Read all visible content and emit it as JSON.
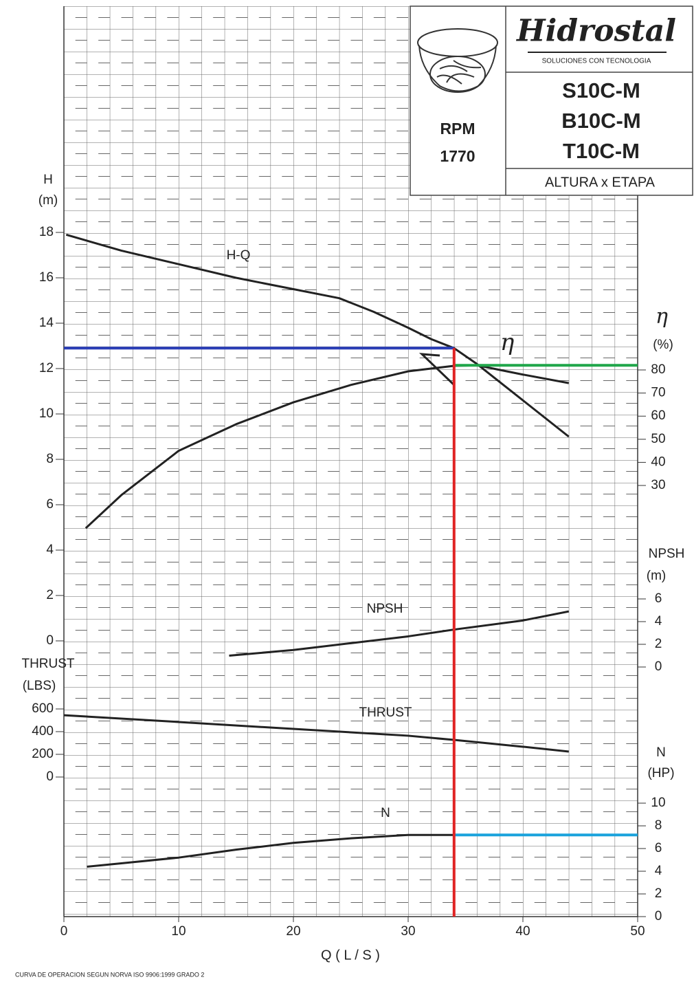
{
  "header": {
    "rpm_label": "RPM",
    "rpm": "1770",
    "brand": "Hidrostal",
    "tagline": "SOLUCIONES CON TECNOLOGIA",
    "models": [
      "S10C-M",
      "B10C-M",
      "T10C-M"
    ],
    "subtitle": "ALTURA x ETAPA"
  },
  "footer": "CURVA DE OPERACION SEGUN NORVA ISO 9906:1999 GRADO 2",
  "chart_data": {
    "type": "line",
    "xlabel": "Q ( L / S )",
    "xlim": [
      0,
      50
    ],
    "xticks": [
      0,
      10,
      20,
      30,
      40,
      50
    ],
    "grid": true,
    "operating_point": {
      "q": {
        "value": 34,
        "color": "#e02424"
      },
      "h": {
        "value": 12.9,
        "color": "#2b3fb8"
      },
      "efficiency": {
        "value": 82,
        "color": "#20a64a"
      },
      "power": {
        "value": 7.2,
        "color": "#1aa3dc"
      }
    },
    "panels": [
      {
        "label": "H",
        "unit": "(m)",
        "side": "left",
        "ylim": [
          0,
          18
        ],
        "yticks": [
          0,
          2,
          4,
          6,
          8,
          10,
          12,
          14,
          16,
          18
        ],
        "series": [
          {
            "name": "H-Q",
            "color": "#222222",
            "x": [
              0.2,
              5,
              10,
              15,
              20,
              24,
              27,
              30,
              32,
              34,
              36,
              40,
              44
            ],
            "values": [
              17.9,
              17.2,
              16.6,
              16.0,
              15.5,
              15.1,
              14.5,
              13.8,
              13.3,
              12.9,
              12.2,
              10.6,
              9.0
            ]
          }
        ]
      },
      {
        "label": "η",
        "unit": "(%)",
        "side": "right",
        "ylim": [
          30,
          80
        ],
        "yticks": [
          30,
          40,
          50,
          60,
          70,
          80
        ],
        "series": [
          {
            "name": "η",
            "color": "#222222",
            "x": [
              1.9,
              5,
              10,
              15,
              20,
              25,
              30,
              34,
              36,
              40,
              44
            ],
            "values": [
              11.5,
              25.8,
              45,
              56.5,
              66,
              73.5,
              79.4,
              81.8,
              82,
              78,
              74.3
            ]
          }
        ]
      },
      {
        "label": "NPSH",
        "unit": "(m)",
        "side": "right",
        "ylim": [
          0,
          6
        ],
        "yticks": [
          0,
          2,
          4,
          6
        ],
        "series": [
          {
            "name": "NPSH",
            "color": "#222222",
            "x": [
              14.4,
              20,
              25,
              30,
              34,
              40,
              44
            ],
            "values": [
              1.0,
              1.5,
              2.1,
              2.7,
              3.3,
              4.1,
              4.9
            ]
          }
        ]
      },
      {
        "label": "THRUST",
        "unit": "(LBS)",
        "side": "left",
        "ylim": [
          0,
          600
        ],
        "yticks": [
          0,
          200,
          400,
          600
        ],
        "series": [
          {
            "name": "THRUST",
            "color": "#222222",
            "x": [
              0,
              10,
              20,
              30,
              34,
              40,
              44
            ],
            "values": [
              545,
              485,
              424,
              364,
              327,
              267,
              224
            ]
          }
        ]
      },
      {
        "label": "N",
        "unit": "(HP)",
        "side": "right",
        "ylim": [
          0,
          10
        ],
        "yticks": [
          0,
          2,
          4,
          6,
          8,
          10
        ],
        "series": [
          {
            "name": "N",
            "color": "#222222",
            "x": [
              2,
              5,
              10,
              15,
              20,
              25,
              30,
              34
            ],
            "values": [
              4.4,
              4.7,
              5.2,
              5.9,
              6.5,
              6.9,
              7.2,
              7.2
            ]
          }
        ]
      }
    ]
  }
}
